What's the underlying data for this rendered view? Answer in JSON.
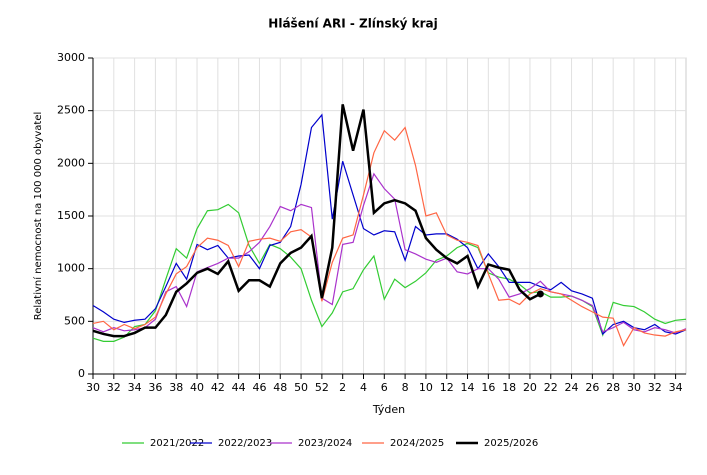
{
  "chart_data": {
    "type": "line",
    "title": "Hlášení ARI  -  Zlínský kraj",
    "x_label": "Týden",
    "y_label": "Relativní nemocnost na 100 000 obyvatel",
    "categories": [
      "30",
      null,
      "32",
      null,
      "34",
      null,
      "36",
      null,
      "38",
      null,
      "40",
      null,
      "42",
      null,
      "44",
      null,
      "46",
      null,
      "48",
      null,
      "50",
      null,
      "52",
      null,
      "2",
      null,
      "4",
      null,
      "6",
      null,
      "8",
      null,
      "10",
      null,
      "12",
      null,
      "14",
      null,
      "16",
      null,
      "18",
      null,
      "20",
      null,
      "22",
      null,
      "24",
      null,
      "26",
      null,
      "28",
      null,
      "30",
      null,
      "32",
      null,
      "34",
      null
    ],
    "ylim": [
      0,
      3000
    ],
    "yticks": [
      0,
      500,
      1000,
      1500,
      2000,
      2500,
      3000
    ],
    "grid": true,
    "series": [
      {
        "name": "2021/2022",
        "color": "#33cc33",
        "values": [
          340,
          310,
          310,
          350,
          450,
          470,
          600,
          900,
          1190,
          1100,
          1380,
          1550,
          1560,
          1610,
          1530,
          1220,
          1050,
          1230,
          1190,
          1110,
          1000,
          700,
          450,
          580,
          780,
          810,
          990,
          1120,
          710,
          900,
          820,
          880,
          960,
          1080,
          1120,
          1200,
          1240,
          1200,
          960,
          920,
          900,
          850,
          770,
          780,
          730,
          730,
          740,
          700,
          640,
          370,
          680,
          650,
          640,
          590,
          520,
          480,
          510,
          520
        ]
      },
      {
        "name": "2022/2023",
        "color": "#0000cc",
        "values": [
          650,
          590,
          520,
          490,
          510,
          520,
          620,
          830,
          1050,
          900,
          1230,
          1180,
          1220,
          1100,
          1120,
          1130,
          1000,
          1220,
          1250,
          1400,
          1800,
          2340,
          2460,
          1470,
          2020,
          1700,
          1380,
          1320,
          1360,
          1350,
          1080,
          1400,
          1320,
          1330,
          1330,
          1280,
          1200,
          1000,
          1140,
          1020,
          870,
          870,
          870,
          830,
          800,
          870,
          790,
          760,
          720,
          380,
          470,
          500,
          440,
          420,
          470,
          400,
          380,
          420
        ]
      },
      {
        "name": "2023/2024",
        "color": "#aa33cc",
        "values": [
          440,
          400,
          440,
          410,
          420,
          440,
          520,
          780,
          830,
          640,
          970,
          1010,
          1050,
          1100,
          1100,
          1160,
          1250,
          1400,
          1590,
          1550,
          1610,
          1580,
          720,
          660,
          1230,
          1250,
          1600,
          1900,
          1760,
          1660,
          1180,
          1140,
          1090,
          1060,
          1100,
          970,
          950,
          1000,
          1000,
          900,
          730,
          760,
          810,
          880,
          780,
          760,
          740,
          700,
          650,
          400,
          440,
          490,
          420,
          400,
          440,
          420,
          390,
          430
        ]
      },
      {
        "name": "2024/2025",
        "color": "#ff6644",
        "values": [
          480,
          500,
          420,
          470,
          430,
          470,
          540,
          760,
          950,
          1020,
          1200,
          1290,
          1270,
          1220,
          1020,
          1260,
          1280,
          1290,
          1260,
          1350,
          1370,
          1300,
          690,
          1060,
          1290,
          1320,
          1700,
          2100,
          2310,
          2220,
          2340,
          1980,
          1500,
          1530,
          1320,
          1270,
          1250,
          1220,
          950,
          700,
          710,
          660,
          760,
          810,
          780,
          760,
          700,
          640,
          590,
          540,
          530,
          270,
          440,
          390,
          370,
          360,
          400,
          420
        ]
      },
      {
        "name": "2025/2026",
        "color": "#000000",
        "values": [
          410,
          380,
          360,
          360,
          390,
          440,
          440,
          560,
          780,
          860,
          960,
          1000,
          950,
          1070,
          790,
          890,
          890,
          830,
          1050,
          1150,
          1200,
          1310,
          720,
          1200,
          2560,
          2120,
          2510,
          1530,
          1620,
          1650,
          1620,
          1550,
          1290,
          1180,
          1100,
          1050,
          1120,
          830,
          1040,
          1010,
          990,
          800,
          710,
          760,
          null,
          null,
          null,
          null,
          null,
          null,
          null,
          null,
          null,
          null,
          null,
          null,
          null,
          null
        ]
      }
    ]
  }
}
